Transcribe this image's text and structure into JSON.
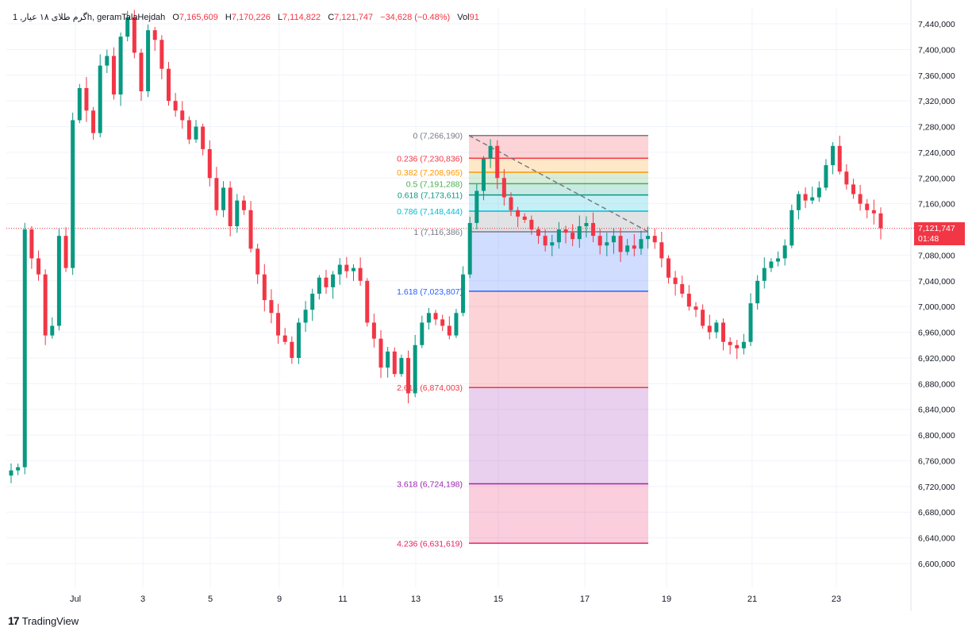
{
  "legend": {
    "symbol": "1 ,گرم طلای ۱۸ عیار",
    "interval_source": "h, geramTalaHejdah",
    "o_label": "O",
    "o_value": "7,165,609",
    "h_label": "H",
    "h_value": "7,170,226",
    "l_label": "L",
    "l_value": "7,114,822",
    "c_label": "C",
    "c_value": "7,121,747",
    "change": "−34,628 (−0.48%)",
    "vol_label": "Vol",
    "vol_value": "91"
  },
  "price_tag": {
    "price": "7,121,747",
    "countdown": "01:48"
  },
  "brand": {
    "logo": "17",
    "name": "TradingView"
  },
  "colors": {
    "up": "#089981",
    "down": "#f23645",
    "grid": "#f0f3fa",
    "axis_text": "#131722"
  },
  "chart_data": {
    "type": "candlestick",
    "y_axis": {
      "ylim": [
        6580000,
        7460000
      ],
      "ticks": [
        "7,440,000",
        "7,400,000",
        "7,360,000",
        "7,320,000",
        "7,280,000",
        "7,240,000",
        "7,200,000",
        "7,160,000",
        "7,120,000",
        "7,080,000",
        "7,040,000",
        "7,000,000",
        "6,960,000",
        "6,920,000",
        "6,880,000",
        "6,840,000",
        "6,800,000",
        "6,760,000",
        "6,720,000",
        "6,680,000",
        "6,640,000",
        "6,600,000"
      ],
      "tick_values": [
        7440000,
        7400000,
        7360000,
        7320000,
        7280000,
        7240000,
        7200000,
        7160000,
        7120000,
        7080000,
        7040000,
        7000000,
        6960000,
        6920000,
        6880000,
        6840000,
        6800000,
        6760000,
        6720000,
        6680000,
        6640000,
        6600000
      ]
    },
    "x_axis": {
      "labels": [
        "Jul",
        "3",
        "5",
        "9",
        "11",
        "13",
        "15",
        "17",
        "19",
        "21",
        "23"
      ]
    },
    "last_price": 7121747,
    "candle_closes": [
      6745000,
      6750000,
      7120000,
      7075000,
      7050000,
      6955000,
      6970000,
      7110000,
      7060000,
      7290000,
      7340000,
      7305000,
      7270000,
      7375000,
      7390000,
      7330000,
      7420000,
      7450000,
      7395000,
      7335000,
      7430000,
      7415000,
      7370000,
      7320000,
      7305000,
      7290000,
      7260000,
      7280000,
      7245000,
      7200000,
      7150000,
      7185000,
      7125000,
      7165000,
      7150000,
      7090000,
      7050000,
      7010000,
      6990000,
      6955000,
      6945000,
      6920000,
      6975000,
      6995000,
      7020000,
      7045000,
      7030000,
      7050000,
      7065000,
      7055000,
      7060000,
      7040000,
      6975000,
      6950000,
      6905000,
      6930000,
      6895000,
      6920000,
      6865000,
      6940000,
      6975000,
      6990000,
      6980000,
      6970000,
      6955000,
      6990000,
      7050000,
      7130000,
      7180000,
      7230000,
      7250000,
      7200000,
      7170000,
      7150000,
      7140000,
      7135000,
      7120000,
      7110000,
      7095000,
      7100000,
      7120000,
      7115000,
      7105000,
      7125000,
      7130000,
      7110000,
      7095000,
      7100000,
      7110000,
      7085000,
      7095000,
      7090000,
      7105000,
      7110000,
      7100000,
      7075000,
      7045000,
      7035000,
      7020000,
      7000000,
      6995000,
      6970000,
      6960000,
      6975000,
      6945000,
      6940000,
      6935000,
      6945000,
      7005000,
      7040000,
      7060000,
      7070000,
      7075000,
      7095000,
      7150000,
      7175000,
      7165000,
      7170000,
      7185000,
      7220000,
      7250000,
      7210000,
      7190000,
      7175000,
      7160000,
      7150000,
      7145000,
      7121747
    ],
    "fibonacci": {
      "levels": [
        {
          "ratio": "0",
          "label": "0 (7,266,190)",
          "value": 7266190,
          "color": "#787b86"
        },
        {
          "ratio": "0.236",
          "label": "0.236 (7,230,836)",
          "value": 7230836,
          "color": "#f23645"
        },
        {
          "ratio": "0.382",
          "label": "0.382 (7,208,965)",
          "value": 7208965,
          "color": "#ff9800"
        },
        {
          "ratio": "0.5",
          "label": "0.5 (7,191,288)",
          "value": 7191288,
          "color": "#4caf50"
        },
        {
          "ratio": "0.618",
          "label": "0.618 (7,173,611)",
          "value": 7173611,
          "color": "#089981"
        },
        {
          "ratio": "0.786",
          "label": "0.786 (7,148,444)",
          "value": 7148444,
          "color": "#00bcd4"
        },
        {
          "ratio": "1",
          "label": "1 (7,116,386)",
          "value": 7116386,
          "color": "#787b86"
        },
        {
          "ratio": "1.618",
          "label": "1.618 (7,023,807)",
          "value": 7023807,
          "color": "#2962ff"
        },
        {
          "ratio": "2.618",
          "label": "2.618 (6,874,003)",
          "value": 6874003,
          "color": "#f23645"
        },
        {
          "ratio": "3.618",
          "label": "3.618 (6,724,198)",
          "value": 6724198,
          "color": "#9c27b0"
        },
        {
          "ratio": "4.236",
          "label": "4.236 (6,631,619)",
          "value": 6631619,
          "color": "#e91e63"
        }
      ],
      "zone_colors": [
        "rgba(242,54,69,0.22)",
        "rgba(255,152,0,0.22)",
        "rgba(76,175,80,0.22)",
        "rgba(8,153,129,0.22)",
        "rgba(0,188,212,0.22)",
        "rgba(120,123,134,0.22)",
        "rgba(41,98,255,0.22)",
        "rgba(242,54,69,0.22)",
        "rgba(156,39,176,0.22)",
        "rgba(233,30,99,0.22)"
      ]
    }
  }
}
